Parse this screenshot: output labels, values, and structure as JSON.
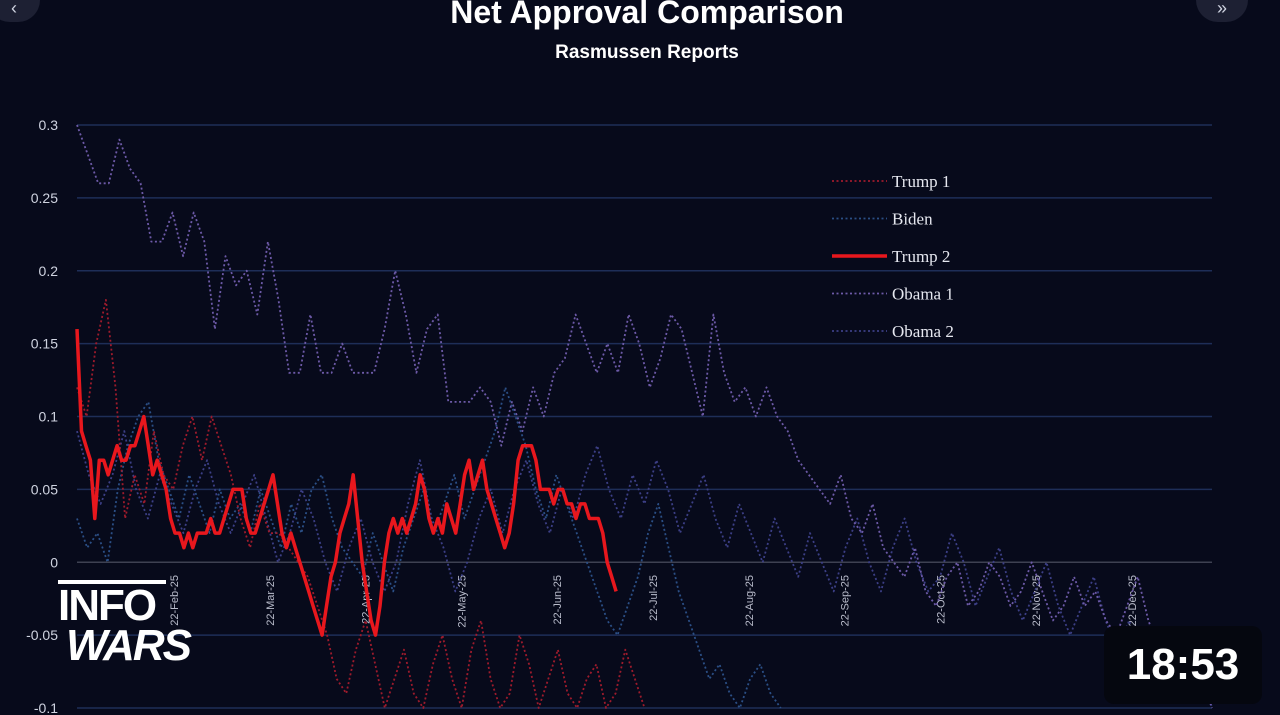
{
  "player": {
    "duration": "18:53",
    "logo_line1": "INFO",
    "logo_line2": "WARS",
    "prev_icon": "chevron-left-icon",
    "next_icon": "double-chevron-right-icon"
  },
  "chart_data": {
    "type": "line",
    "title": "Net Approval Comparison",
    "subtitle": "Rasmussen Reports",
    "xlabel": "",
    "ylabel": "",
    "ylim": [
      -0.1,
      0.3
    ],
    "y_ticks": [
      "0.3",
      "0.25",
      "0.2",
      "0.15",
      "0.1",
      "0.05",
      "0",
      "-0.05",
      "-0.1"
    ],
    "x_ticks": [
      "22-Feb-25",
      "22-Mar-25",
      "22-Apr-25",
      "22-May-25",
      "22-Jun-25",
      "22-Jul-25",
      "22-Aug-25",
      "22-Sep-25",
      "22-Oct-25",
      "22-Nov-25",
      "22-Dec-25"
    ],
    "grid": true,
    "legend_position": "top-right",
    "background": "#070a1b",
    "series": [
      {
        "name": "Trump 1",
        "color": "#9e1b2c",
        "style": "dotted",
        "values": [
          0.12,
          0.1,
          0.15,
          0.18,
          0.12,
          0.03,
          0.06,
          0.04,
          0.09,
          0.06,
          0.05,
          0.08,
          0.1,
          0.07,
          0.1,
          0.08,
          0.06,
          0.03,
          0.01,
          0.04,
          0.02,
          0.02,
          0.01,
          0.0,
          -0.01,
          -0.03,
          -0.05,
          -0.08,
          -0.09,
          -0.06,
          -0.04,
          -0.07,
          -0.1,
          -0.08,
          -0.06,
          -0.09,
          -0.1,
          -0.07,
          -0.05,
          -0.08,
          -0.1,
          -0.06,
          -0.04,
          -0.08,
          -0.1,
          -0.09,
          -0.05,
          -0.07,
          -0.1,
          -0.08,
          -0.06,
          -0.09,
          -0.1,
          -0.08,
          -0.07,
          -0.1,
          -0.09,
          -0.06,
          -0.08,
          -0.1
        ]
      },
      {
        "name": "Biden",
        "color": "#2b4f86",
        "style": "dotted",
        "values": [
          0.03,
          0.01,
          0.02,
          0.0,
          0.05,
          0.08,
          0.1,
          0.11,
          0.07,
          0.05,
          0.03,
          0.06,
          0.04,
          0.02,
          0.05,
          0.03,
          0.04,
          0.02,
          0.05,
          0.03,
          0.01,
          0.04,
          0.02,
          0.05,
          0.06,
          0.03,
          0.01,
          0.0,
          -0.01,
          0.02,
          0.0,
          -0.02,
          0.01,
          0.03,
          0.05,
          0.02,
          0.04,
          0.06,
          0.03,
          0.05,
          0.07,
          0.09,
          0.12,
          0.1,
          0.08,
          0.05,
          0.03,
          0.06,
          0.04,
          0.02,
          0.0,
          -0.02,
          -0.04,
          -0.05,
          -0.03,
          -0.01,
          0.02,
          0.04,
          0.01,
          -0.02,
          -0.04,
          -0.06,
          -0.08,
          -0.07,
          -0.09,
          -0.1,
          -0.08,
          -0.07,
          -0.09,
          -0.1
        ]
      },
      {
        "name": "Trump 2",
        "color": "#e8171d",
        "style": "solid",
        "values": [
          0.16,
          0.09,
          0.08,
          0.07,
          0.03,
          0.07,
          0.07,
          0.06,
          0.07,
          0.08,
          0.07,
          0.07,
          0.08,
          0.08,
          0.09,
          0.1,
          0.08,
          0.06,
          0.07,
          0.06,
          0.05,
          0.03,
          0.02,
          0.02,
          0.01,
          0.02,
          0.01,
          0.02,
          0.02,
          0.02,
          0.03,
          0.02,
          0.02,
          0.03,
          0.04,
          0.05,
          0.05,
          0.05,
          0.03,
          0.02,
          0.02,
          0.03,
          0.04,
          0.05,
          0.06,
          0.04,
          0.02,
          0.01,
          0.02,
          0.01,
          0.0,
          -0.01,
          -0.02,
          -0.03,
          -0.04,
          -0.05,
          -0.03,
          -0.01,
          0.0,
          0.02,
          0.03,
          0.04,
          0.06,
          0.03,
          0.0,
          -0.02,
          -0.04,
          -0.05,
          -0.03,
          0.0,
          0.02,
          0.03,
          0.02,
          0.03,
          0.02,
          0.03,
          0.04,
          0.06,
          0.05,
          0.03,
          0.02,
          0.03,
          0.02,
          0.04,
          0.03,
          0.02,
          0.04,
          0.06,
          0.07,
          0.05,
          0.06,
          0.07,
          0.05,
          0.04,
          0.03,
          0.02,
          0.01,
          0.02,
          0.04,
          0.07,
          0.08,
          0.08,
          0.08,
          0.07,
          0.05,
          0.05,
          0.05,
          0.04,
          0.05,
          0.05,
          0.04,
          0.04,
          0.03,
          0.04,
          0.04,
          0.03,
          0.03,
          0.03,
          0.02,
          0.0,
          -0.01,
          -0.02
        ]
      },
      {
        "name": "Obama 1",
        "color": "#6d5aa8",
        "style": "dotted",
        "values": [
          0.3,
          0.28,
          0.26,
          0.26,
          0.29,
          0.27,
          0.26,
          0.22,
          0.22,
          0.24,
          0.21,
          0.24,
          0.22,
          0.16,
          0.21,
          0.19,
          0.2,
          0.17,
          0.22,
          0.18,
          0.13,
          0.13,
          0.17,
          0.13,
          0.13,
          0.15,
          0.13,
          0.13,
          0.13,
          0.16,
          0.2,
          0.17,
          0.13,
          0.16,
          0.17,
          0.11,
          0.11,
          0.11,
          0.12,
          0.11,
          0.08,
          0.11,
          0.09,
          0.12,
          0.1,
          0.13,
          0.14,
          0.17,
          0.15,
          0.13,
          0.15,
          0.13,
          0.17,
          0.15,
          0.12,
          0.14,
          0.17,
          0.16,
          0.13,
          0.1,
          0.17,
          0.13,
          0.11,
          0.12,
          0.1,
          0.12,
          0.1,
          0.09,
          0.07,
          0.06,
          0.05,
          0.04,
          0.06,
          0.03,
          0.02,
          0.04,
          0.01,
          0.0,
          -0.01,
          0.01,
          -0.02,
          -0.03,
          -0.01,
          0.0,
          -0.03,
          -0.02,
          0.0,
          -0.01,
          -0.03,
          -0.02,
          0.0,
          -0.02,
          -0.04,
          -0.03,
          -0.01,
          -0.03,
          -0.02,
          -0.04,
          -0.05,
          -0.03,
          -0.01,
          -0.04,
          -0.06,
          -0.08,
          -0.07,
          -0.09,
          -0.08,
          -0.1
        ]
      },
      {
        "name": "Obama 2",
        "color": "#3c3f86",
        "style": "dotted",
        "values": [
          0.09,
          0.06,
          0.04,
          0.06,
          0.09,
          0.05,
          0.03,
          0.06,
          0.04,
          0.02,
          0.05,
          0.07,
          0.04,
          0.02,
          0.04,
          0.06,
          0.03,
          0.0,
          0.02,
          0.05,
          0.03,
          0.0,
          -0.02,
          0.01,
          0.03,
          0.0,
          -0.02,
          0.0,
          0.04,
          0.07,
          0.03,
          0.01,
          -0.02,
          0.0,
          0.03,
          0.05,
          0.02,
          0.05,
          0.07,
          0.04,
          0.02,
          0.05,
          0.03,
          0.06,
          0.08,
          0.05,
          0.03,
          0.06,
          0.04,
          0.07,
          0.05,
          0.02,
          0.04,
          0.06,
          0.03,
          0.01,
          0.04,
          0.02,
          0.0,
          0.03,
          0.01,
          -0.01,
          0.02,
          0.0,
          -0.02,
          0.01,
          0.03,
          0.0,
          -0.02,
          0.01,
          0.03,
          0.0,
          -0.02,
          -0.01,
          0.02,
          0.0,
          -0.03,
          -0.01,
          0.01,
          -0.02,
          -0.04,
          -0.02,
          0.0,
          -0.03,
          -0.05,
          -0.03,
          -0.01,
          -0.04,
          -0.06,
          -0.04,
          -0.07,
          -0.05,
          -0.08,
          -0.06,
          -0.09,
          -0.07,
          -0.1
        ]
      }
    ]
  }
}
